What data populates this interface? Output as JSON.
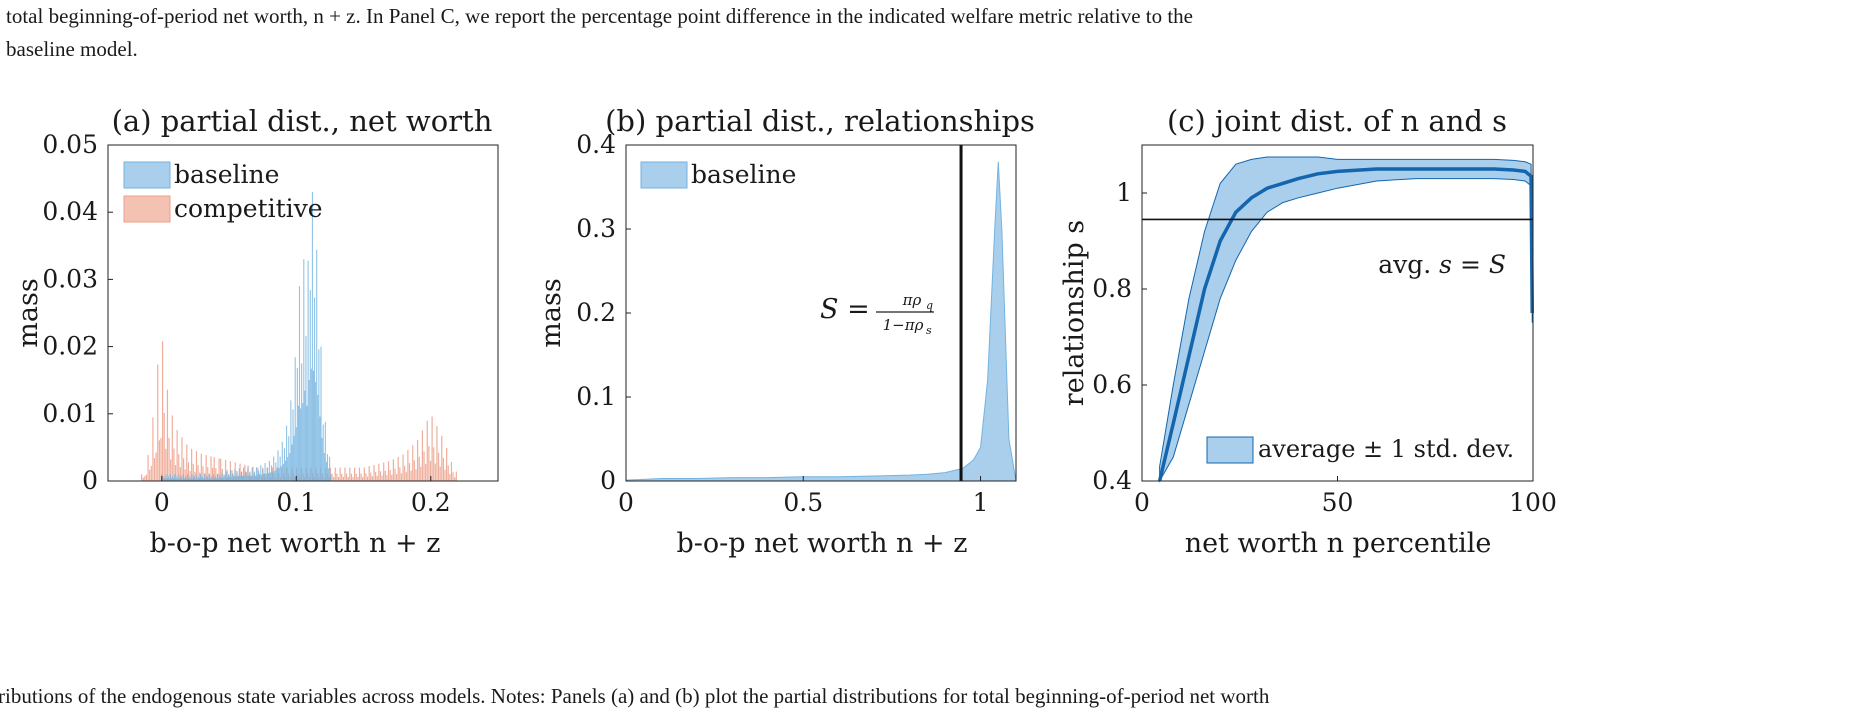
{
  "paragraph": {
    "line1": "total beginning-of-period net worth, n + z. In Panel C, we report the percentage point difference in the indicated welfare metric relative to the",
    "line2": "baseline model."
  },
  "caption_bottom": "ributions of the endogenous state variables across models. Notes: Panels (a) and (b) plot the partial distributions for total beginning-of-period net worth",
  "colors": {
    "baseline": "#74b3e0",
    "baseline_fill": "#a9cfec",
    "competitive": "#eda08a",
    "line": "#1465ad",
    "axis": "#222222"
  },
  "chart_data": [
    {
      "type": "bar",
      "title": "(a) partial dist., net worth",
      "xlabel": "b-o-p net worth n + z",
      "ylabel": "mass",
      "xlim": [
        -0.04,
        0.25
      ],
      "ylim": [
        0,
        0.05
      ],
      "xticks": [
        0,
        0.1,
        0.2
      ],
      "xtick_labels": [
        "0",
        "0.1",
        "0.2"
      ],
      "yticks": [
        0,
        0.01,
        0.02,
        0.03,
        0.04,
        0.05
      ],
      "ytick_labels": [
        "0",
        "0.01",
        "0.02",
        "0.03",
        "0.04",
        "0.05"
      ],
      "legend": "top-left",
      "series": [
        {
          "name": "baseline",
          "x": [
            0.0,
            0.02,
            0.04,
            0.06,
            0.07,
            0.08,
            0.085,
            0.09,
            0.095,
            0.1,
            0.102,
            0.104,
            0.106,
            0.108,
            0.11,
            0.112,
            0.114,
            0.116,
            0.118,
            0.12,
            0.123,
            0.126
          ],
          "values": [
            0.001,
            0.001,
            0.001,
            0.002,
            0.002,
            0.003,
            0.004,
            0.006,
            0.01,
            0.02,
            0.03,
            0.025,
            0.035,
            0.028,
            0.04,
            0.043,
            0.038,
            0.032,
            0.022,
            0.012,
            0.006,
            0.002
          ]
        },
        {
          "name": "competitive",
          "x": [
            -0.015,
            -0.01,
            -0.005,
            -0.002,
            0.0,
            0.002,
            0.005,
            0.01,
            0.02,
            0.03,
            0.05,
            0.07,
            0.09,
            0.11,
            0.13,
            0.15,
            0.17,
            0.18,
            0.19,
            0.195,
            0.2,
            0.205,
            0.21,
            0.215,
            0.22
          ],
          "values": [
            0.001,
            0.004,
            0.012,
            0.02,
            0.022,
            0.018,
            0.012,
            0.008,
            0.005,
            0.004,
            0.003,
            0.002,
            0.002,
            0.002,
            0.002,
            0.002,
            0.003,
            0.004,
            0.006,
            0.008,
            0.01,
            0.008,
            0.006,
            0.003,
            0.001
          ]
        }
      ]
    },
    {
      "type": "area",
      "title": "(b) partial dist., relationships",
      "xlabel": "b-o-p net worth n + z",
      "ylabel": "mass",
      "xlim": [
        0,
        1.1
      ],
      "ylim": [
        0,
        0.4
      ],
      "xticks": [
        0,
        0.5,
        1
      ],
      "xtick_labels": [
        "0",
        "0.5",
        "1"
      ],
      "yticks": [
        0,
        0.1,
        0.2,
        0.3,
        0.4
      ],
      "ytick_labels": [
        "0",
        "0.1",
        "0.2",
        "0.3",
        "0.4"
      ],
      "legend": "top-left",
      "vline_x": 0.945,
      "vline_label": "S = πρq / (1−πρs)",
      "series": [
        {
          "name": "baseline",
          "x": [
            0,
            0.05,
            0.1,
            0.15,
            0.2,
            0.3,
            0.4,
            0.5,
            0.6,
            0.7,
            0.8,
            0.85,
            0.9,
            0.95,
            0.98,
            1.0,
            1.02,
            1.04,
            1.05,
            1.06,
            1.08,
            1.1
          ],
          "values": [
            0.001,
            0.002,
            0.003,
            0.003,
            0.003,
            0.004,
            0.004,
            0.005,
            0.005,
            0.006,
            0.007,
            0.008,
            0.01,
            0.015,
            0.025,
            0.04,
            0.12,
            0.3,
            0.38,
            0.3,
            0.05,
            0.0
          ]
        }
      ]
    },
    {
      "type": "line",
      "title": "(c) joint dist. of n and s",
      "xlabel": "net worth n percentile",
      "ylabel": "relationship s",
      "xlim": [
        0,
        100
      ],
      "ylim": [
        0.4,
        1.1
      ],
      "xticks": [
        0,
        50,
        100
      ],
      "xtick_labels": [
        "0",
        "50",
        "100"
      ],
      "yticks": [
        0.4,
        0.6,
        0.8,
        1.0
      ],
      "ytick_labels": [
        "0.4",
        "0.6",
        "0.8",
        "1"
      ],
      "legend": "bottom-right",
      "hline_y": 0.945,
      "hline_label": "avg. s = S",
      "series": [
        {
          "name": "average ± 1 std. dev.",
          "x": [
            4.5,
            8,
            12,
            16,
            20,
            24,
            28,
            32,
            36,
            40,
            45,
            50,
            60,
            70,
            80,
            90,
            95,
            98,
            99.5,
            99.8
          ],
          "mean": [
            0.4,
            0.52,
            0.66,
            0.8,
            0.9,
            0.96,
            0.99,
            1.01,
            1.02,
            1.03,
            1.04,
            1.045,
            1.05,
            1.05,
            1.05,
            1.05,
            1.048,
            1.045,
            1.035,
            0.75
          ],
          "upper": [
            0.43,
            0.6,
            0.78,
            0.92,
            1.02,
            1.06,
            1.07,
            1.075,
            1.075,
            1.075,
            1.075,
            1.07,
            1.07,
            1.07,
            1.07,
            1.07,
            1.068,
            1.065,
            1.06,
            0.77
          ],
          "lower": [
            0.38,
            0.45,
            0.56,
            0.67,
            0.78,
            0.86,
            0.92,
            0.96,
            0.98,
            0.99,
            1.0,
            1.01,
            1.025,
            1.03,
            1.03,
            1.03,
            1.028,
            1.025,
            1.015,
            0.73
          ]
        }
      ]
    }
  ]
}
